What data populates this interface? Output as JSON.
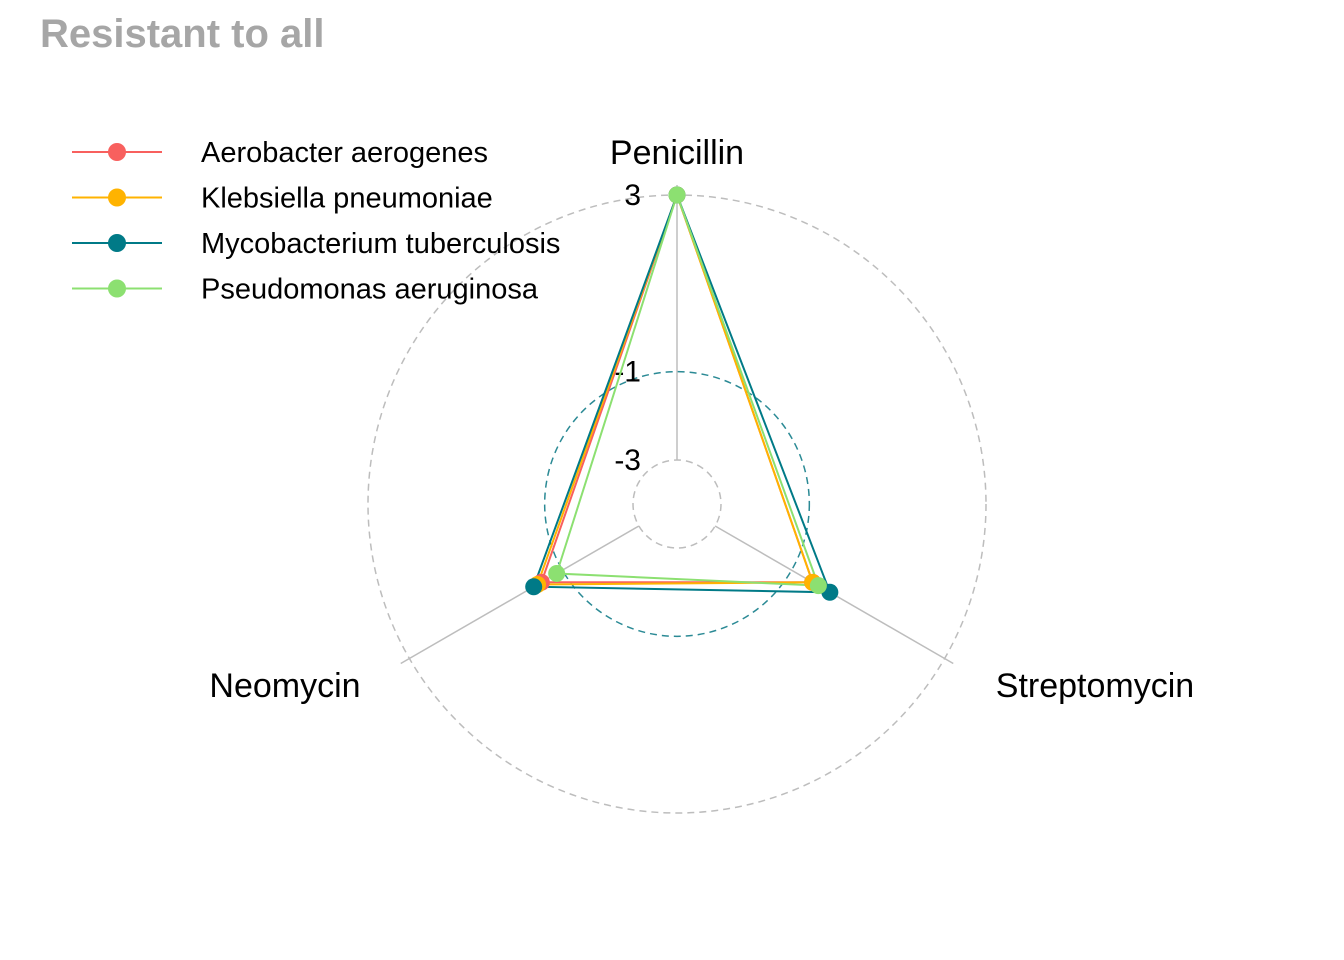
{
  "chart_data": {
    "type": "radar",
    "title": "Resistant to all",
    "axes": [
      "Penicillin",
      "Streptomycin",
      "Neomycin"
    ],
    "grid_labels": [
      "-3",
      "-1",
      "3"
    ],
    "grid_values": [
      -3,
      -1,
      3
    ],
    "range": [
      -3,
      3
    ],
    "legend_position": "top-left",
    "series": [
      {
        "name": "Aerobacter aerogenes",
        "color": "#F8605E",
        "values": [
          3.0,
          -0.45,
          -0.45
        ]
      },
      {
        "name": "Klebsiella pneumoniae",
        "color": "#FFB300",
        "values": [
          3.0,
          -0.45,
          -0.35
        ]
      },
      {
        "name": "Mycobacterium tuberculosis",
        "color": "#007A87",
        "values": [
          3.0,
          0.0,
          -0.25
        ]
      },
      {
        "name": "Pseudomonas aeruginosa",
        "color": "#8CE071",
        "values": [
          3.0,
          -0.3,
          -0.85
        ]
      }
    ]
  }
}
